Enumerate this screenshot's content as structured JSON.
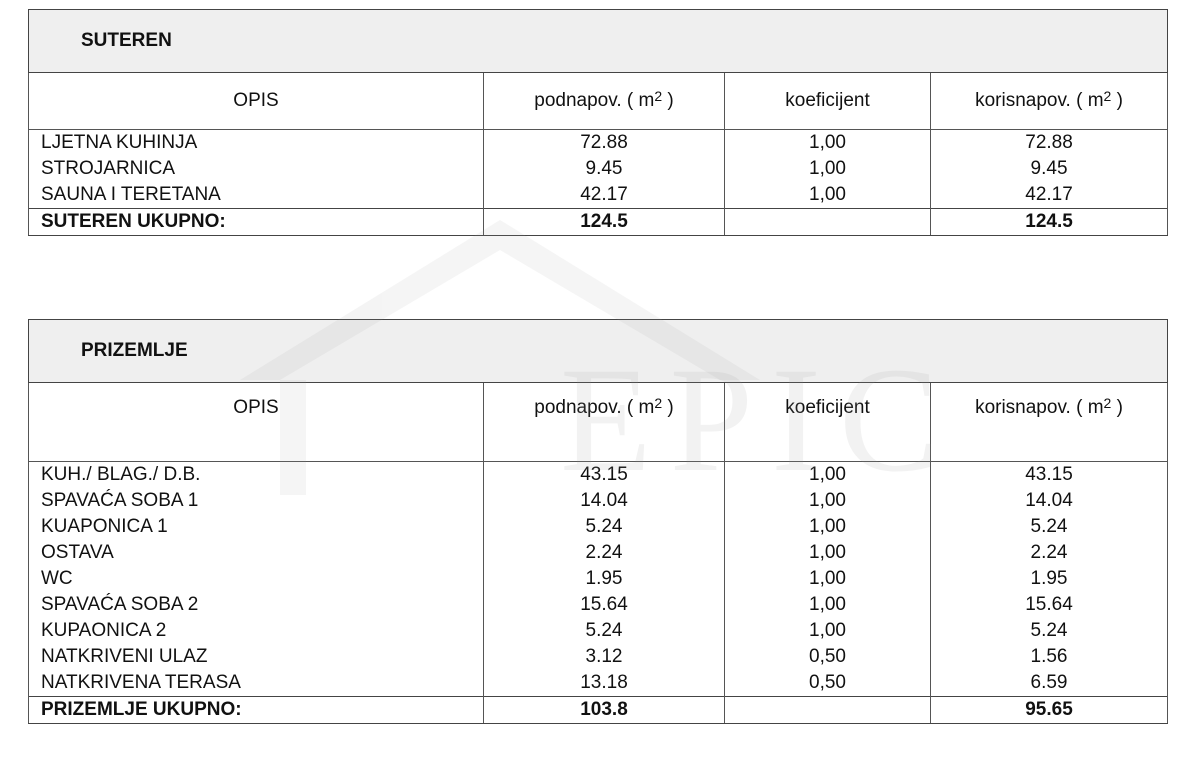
{
  "sections": [
    {
      "title": "SUTEREN",
      "headers": {
        "opis": "OPIS",
        "gross": "podnapov. ( m",
        "coef": "koeficijent",
        "net": "korisnapov. ( m",
        "sup": "2",
        "close": " )"
      },
      "rows": [
        {
          "name": " LJETNA KUHINJA",
          "gross": "72.88",
          "coef": "1,00",
          "net": "72.88"
        },
        {
          "name": "STROJARNICA",
          "gross": "9.45",
          "coef": "1,00",
          "net": "9.45"
        },
        {
          "name": "SAUNA I TERETANA",
          "gross": "42.17",
          "coef": "1,00",
          "net": "42.17"
        }
      ],
      "total": {
        "label": "SUTEREN UKUPNO:",
        "gross": "124.5",
        "net": "124.5"
      }
    },
    {
      "title": "PRIZEMLJE",
      "headers": {
        "opis": "OPIS",
        "gross": "podnapov. ( m",
        "coef": "koeficijent",
        "net": "korisnapov. ( m",
        "sup": "2",
        "close": " )"
      },
      "rows": [
        {
          "name": "KUH./ BLAG./  D.B.",
          "gross": "43.15",
          "coef": "1,00",
          "net": "43.15"
        },
        {
          "name": "SPAVAĆA SOBA 1",
          "gross": "14.04",
          "coef": "1,00",
          "net": "14.04"
        },
        {
          "name": "KUAPONICA 1",
          "gross": "5.24",
          "coef": "1,00",
          "net": "5.24"
        },
        {
          "name": "OSTAVA",
          "gross": "2.24",
          "coef": "1,00",
          "net": "2.24"
        },
        {
          "name": "WC",
          "gross": "1.95",
          "coef": "1,00",
          "net": "1.95"
        },
        {
          "name": "SPAVAĆA SOBA 2",
          "gross": "15.64",
          "coef": "1,00",
          "net": "15.64"
        },
        {
          "name": "KUPAONICA 2",
          "gross": "5.24",
          "coef": "1,00",
          "net": "5.24"
        },
        {
          "name": "NATKRIVENI ULAZ",
          "gross": "3.12",
          "coef": "0,50",
          "net": "1.56"
        },
        {
          "name": "NATKRIVENA TERASA",
          "gross": "13.18",
          "coef": "0,50",
          "net": "6.59"
        }
      ],
      "total": {
        "label": "PRIZEMLJE UKUPNO:",
        "gross": "103.8",
        "net": "95.65"
      }
    }
  ],
  "watermark": {
    "text": "EPIC",
    "color": "#9a9a9a",
    "icon": "house-roof-icon"
  }
}
